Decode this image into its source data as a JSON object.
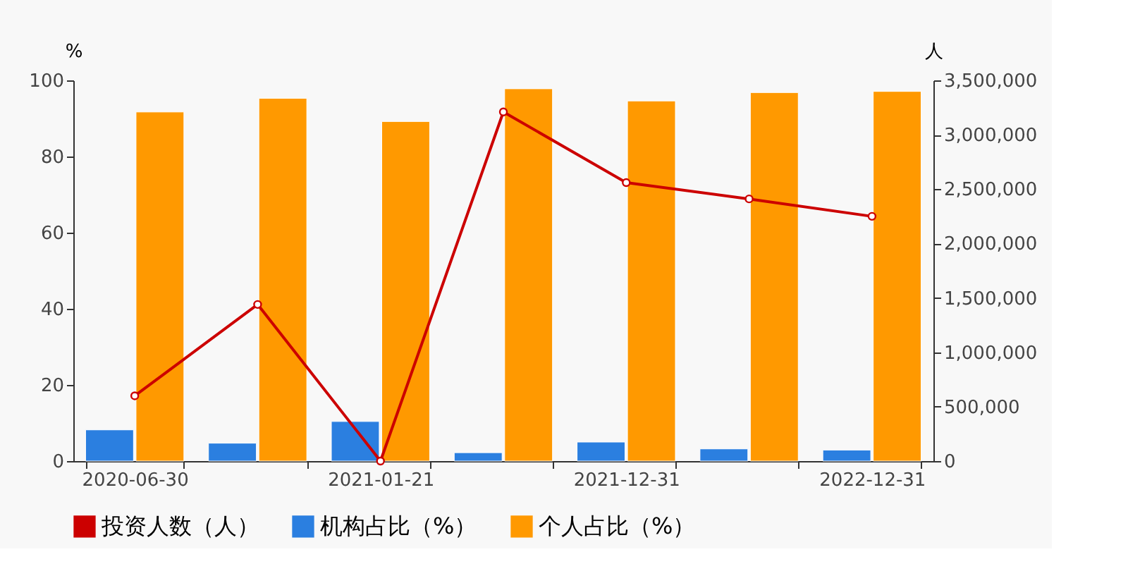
{
  "chart_data": {
    "type": "bar",
    "categories": [
      "2020-06-30",
      null,
      "2021-01-21",
      null,
      "2021-12-31",
      null,
      "2022-12-31"
    ],
    "ylabel": "%",
    "y2label": "人",
    "ylim": [
      0,
      100
    ],
    "yticks": [
      0,
      20,
      40,
      60,
      80,
      100
    ],
    "y2lim": [
      0,
      3500000
    ],
    "y2ticks": [
      0,
      {
        "value": 500000,
        "label": "500,000"
      },
      {
        "value": 1000000,
        "label": "1,000,000"
      },
      {
        "value": 1500000,
        "label": "1,500,000"
      },
      {
        "value": 2000000,
        "label": "2,000,000"
      },
      {
        "value": 2500000,
        "label": "2,500,000"
      },
      {
        "value": 3000000,
        "label": "3,000,000"
      },
      {
        "value": 3500000,
        "label": "3,500,000"
      }
    ],
    "grid": false,
    "legend": "bottom",
    "marker": "circle",
    "line_style": "solid",
    "series": [
      {
        "name": "投资人数（人）",
        "type": "line",
        "axis": "y2",
        "color": "#cc0000",
        "values": [
          600000,
          1440000,
          0,
          3210000,
          2560000,
          2410000,
          2250000
        ]
      },
      {
        "name": "机构占比（%）",
        "color": "#2b7fe0",
        "values": [
          8.2,
          4.7,
          10.4,
          2.2,
          5.0,
          3.2,
          2.9
        ]
      },
      {
        "name": "个人占比（%）",
        "color": "#ff9900",
        "values": [
          91.7,
          95.3,
          89.2,
          97.8,
          94.6,
          96.8,
          97.1
        ]
      }
    ]
  }
}
